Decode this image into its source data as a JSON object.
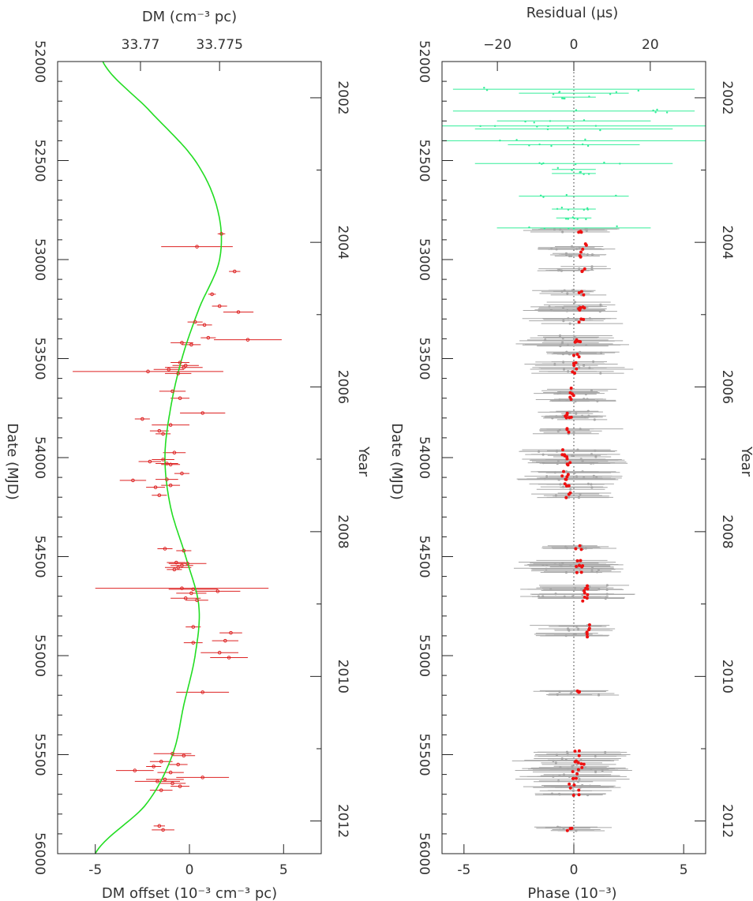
{
  "chart_data": [
    {
      "type": "scatter",
      "orientation": "rotated",
      "xlabel_bottom": "DM offset (10⁻³ cm⁻³ pc)",
      "xlabel_top": "DM (cm⁻³ pc)",
      "ylabel_left": "Date (MJD)",
      "ylabel_right": "Year",
      "xlim": [
        -7,
        7
      ],
      "ylim": [
        52000,
        56000
      ],
      "xticks_bottom": [
        "-5",
        "0",
        "5"
      ],
      "xtick_values_bottom": [
        -5,
        0,
        5
      ],
      "xticks_top": [
        "33.77",
        "33.775"
      ],
      "xtick_values_top": [
        -2.6,
        1.6
      ],
      "yticks_left": [
        "52000",
        "52500",
        "53000",
        "53500",
        "54000",
        "54500",
        "55000",
        "55500",
        "56000"
      ],
      "ytick_values_left": [
        52000,
        52500,
        53000,
        53500,
        54000,
        54500,
        55000,
        55500,
        56000
      ],
      "yticks_right": [
        "2002",
        "2004",
        "2006",
        "2008",
        "2010",
        "2012"
      ],
      "ytick_values_right": [
        52183,
        52913,
        53643,
        54374,
        55105,
        55835
      ],
      "curve_color": "#22dd22",
      "point_color": "#dd2222",
      "curve": {
        "mjd": [
          52000,
          52250,
          52500,
          52750,
          53000,
          53250,
          53500,
          53750,
          54000,
          54250,
          54500,
          54750,
          55000,
          55250,
          55500,
          55750,
          56000
        ],
        "dm": [
          -4.6,
          -2.1,
          0.3,
          1.5,
          1.6,
          0.5,
          -0.4,
          -1.0,
          -1.3,
          -1.0,
          -0.2,
          0.5,
          0.3,
          -0.3,
          -0.9,
          -2.3,
          -5.0
        ]
      },
      "points": [
        {
          "mjd": 52870,
          "dm": 1.7,
          "err": 0.2
        },
        {
          "mjd": 52935,
          "dm": 0.4,
          "err": 1.9
        },
        {
          "mjd": 53060,
          "dm": 2.4,
          "err": 0.3
        },
        {
          "mjd": 53175,
          "dm": 1.2,
          "err": 0.2
        },
        {
          "mjd": 53235,
          "dm": 1.6,
          "err": 0.4
        },
        {
          "mjd": 53265,
          "dm": 2.6,
          "err": 0.8
        },
        {
          "mjd": 53315,
          "dm": 0.3,
          "err": 0.4
        },
        {
          "mjd": 53330,
          "dm": 0.8,
          "err": 0.4
        },
        {
          "mjd": 53395,
          "dm": 1.0,
          "err": 0.4
        },
        {
          "mjd": 53405,
          "dm": 3.1,
          "err": 1.8
        },
        {
          "mjd": 53420,
          "dm": -0.4,
          "err": 0.6
        },
        {
          "mjd": 53430,
          "dm": 0.1,
          "err": 0.5
        },
        {
          "mjd": 53520,
          "dm": -0.5,
          "err": 0.5
        },
        {
          "mjd": 53535,
          "dm": -0.2,
          "err": 0.7
        },
        {
          "mjd": 53545,
          "dm": -0.3,
          "err": 1.0
        },
        {
          "mjd": 53555,
          "dm": -1.1,
          "err": 0.8
        },
        {
          "mjd": 53565,
          "dm": -2.2,
          "err": 4.0
        },
        {
          "mjd": 53575,
          "dm": -0.6,
          "err": 0.7
        },
        {
          "mjd": 53665,
          "dm": -0.9,
          "err": 0.7
        },
        {
          "mjd": 53700,
          "dm": -0.5,
          "err": 0.5
        },
        {
          "mjd": 53775,
          "dm": 0.7,
          "err": 1.2
        },
        {
          "mjd": 53805,
          "dm": -2.5,
          "err": 0.4
        },
        {
          "mjd": 53835,
          "dm": -1.0,
          "err": 1.0
        },
        {
          "mjd": 53865,
          "dm": -1.6,
          "err": 0.5
        },
        {
          "mjd": 53880,
          "dm": -1.4,
          "err": 0.4
        },
        {
          "mjd": 53975,
          "dm": -0.8,
          "err": 0.6
        },
        {
          "mjd": 54010,
          "dm": -1.4,
          "err": 0.6
        },
        {
          "mjd": 54020,
          "dm": -2.1,
          "err": 0.6
        },
        {
          "mjd": 54030,
          "dm": -1.2,
          "err": 0.6
        },
        {
          "mjd": 54035,
          "dm": -1.0,
          "err": 0.5
        },
        {
          "mjd": 54080,
          "dm": -0.4,
          "err": 0.4
        },
        {
          "mjd": 54110,
          "dm": -1.2,
          "err": 0.6
        },
        {
          "mjd": 54115,
          "dm": -3.0,
          "err": 0.7
        },
        {
          "mjd": 54140,
          "dm": -1.0,
          "err": 0.5
        },
        {
          "mjd": 54150,
          "dm": -1.8,
          "err": 0.5
        },
        {
          "mjd": 54190,
          "dm": -1.6,
          "err": 0.4
        },
        {
          "mjd": 54460,
          "dm": -1.3,
          "err": 0.4
        },
        {
          "mjd": 54470,
          "dm": -0.3,
          "err": 0.4
        },
        {
          "mjd": 54530,
          "dm": -0.7,
          "err": 0.5
        },
        {
          "mjd": 54535,
          "dm": -0.1,
          "err": 1.0
        },
        {
          "mjd": 54545,
          "dm": -0.4,
          "err": 0.6
        },
        {
          "mjd": 54555,
          "dm": -0.6,
          "err": 0.7
        },
        {
          "mjd": 54565,
          "dm": -0.8,
          "err": 0.4
        },
        {
          "mjd": 54660,
          "dm": -0.4,
          "err": 4.6
        },
        {
          "mjd": 54665,
          "dm": 0.2,
          "err": 1.3
        },
        {
          "mjd": 54675,
          "dm": 1.5,
          "err": 1.2
        },
        {
          "mjd": 54685,
          "dm": 0.1,
          "err": 0.8
        },
        {
          "mjd": 54710,
          "dm": -0.2,
          "err": 0.8
        },
        {
          "mjd": 54720,
          "dm": 0.4,
          "err": 0.6
        },
        {
          "mjd": 54855,
          "dm": 0.2,
          "err": 0.4
        },
        {
          "mjd": 54885,
          "dm": 2.2,
          "err": 0.6
        },
        {
          "mjd": 54925,
          "dm": 1.9,
          "err": 0.7
        },
        {
          "mjd": 54935,
          "dm": 0.2,
          "err": 0.5
        },
        {
          "mjd": 54985,
          "dm": 1.6,
          "err": 1.0
        },
        {
          "mjd": 55010,
          "dm": 2.1,
          "err": 1.0
        },
        {
          "mjd": 55185,
          "dm": 0.7,
          "err": 1.4
        },
        {
          "mjd": 55495,
          "dm": -0.9,
          "err": 1.0
        },
        {
          "mjd": 55505,
          "dm": -0.3,
          "err": 0.6
        },
        {
          "mjd": 55535,
          "dm": -1.5,
          "err": 0.6
        },
        {
          "mjd": 55550,
          "dm": -0.6,
          "err": 0.5
        },
        {
          "mjd": 55560,
          "dm": -1.9,
          "err": 0.4
        },
        {
          "mjd": 55580,
          "dm": -2.9,
          "err": 1.0
        },
        {
          "mjd": 55590,
          "dm": -1.0,
          "err": 0.7
        },
        {
          "mjd": 55615,
          "dm": 0.7,
          "err": 1.4
        },
        {
          "mjd": 55625,
          "dm": -1.3,
          "err": 1.0
        },
        {
          "mjd": 55635,
          "dm": -1.7,
          "err": 1.2
        },
        {
          "mjd": 55645,
          "dm": -0.9,
          "err": 0.7
        },
        {
          "mjd": 55660,
          "dm": -0.5,
          "err": 0.5
        },
        {
          "mjd": 55680,
          "dm": -1.5,
          "err": 0.6
        },
        {
          "mjd": 55860,
          "dm": -1.6,
          "err": 0.3
        },
        {
          "mjd": 55880,
          "dm": -1.4,
          "err": 0.6
        }
      ]
    },
    {
      "type": "scatter",
      "orientation": "rotated",
      "xlabel_bottom": "Phase (10⁻³)",
      "xlabel_top": "Residual (μs)",
      "ylabel_left": "Date (MJD)",
      "ylabel_right": "Year",
      "xlim": [
        -6,
        6
      ],
      "ylim": [
        52000,
        56000
      ],
      "xticks_bottom": [
        "-5",
        "0",
        "5"
      ],
      "xtick_values_bottom": [
        -5,
        0,
        5
      ],
      "xticks_top": [
        "−20",
        "0",
        "20"
      ],
      "xtick_values_top": [
        -3.48,
        0,
        3.48
      ],
      "yticks_left": [
        "52000",
        "52500",
        "53000",
        "53500",
        "54000",
        "54500",
        "55000",
        "55500",
        "56000"
      ],
      "ytick_values_left": [
        52000,
        52500,
        53000,
        53500,
        54000,
        54500,
        55000,
        55500,
        56000
      ],
      "yticks_right": [
        "2002",
        "2004",
        "2006",
        "2008",
        "2010",
        "2012"
      ],
      "ytick_values_right": [
        52183,
        52913,
        53643,
        54374,
        55105,
        55835
      ],
      "early_color": "#33ee99",
      "grey_color": "#a8a8a8",
      "red_color": "#ee1111",
      "zero_line": "dotted",
      "epochs_early": [
        {
          "mjd": 52140,
          "half_width": 5.5
        },
        {
          "mjd": 52160,
          "half_width": 2.5
        },
        {
          "mjd": 52180,
          "half_width": 1.0
        },
        {
          "mjd": 52250,
          "half_width": 5.5
        },
        {
          "mjd": 52300,
          "half_width": 3.5
        },
        {
          "mjd": 52325,
          "half_width": 6.0
        },
        {
          "mjd": 52340,
          "half_width": 4.5
        },
        {
          "mjd": 52400,
          "half_width": 6.0
        },
        {
          "mjd": 52420,
          "half_width": 3.0
        },
        {
          "mjd": 52515,
          "half_width": 4.5
        },
        {
          "mjd": 52545,
          "half_width": 1.0
        },
        {
          "mjd": 52565,
          "half_width": 1.0
        },
        {
          "mjd": 52680,
          "half_width": 2.5
        },
        {
          "mjd": 52745,
          "half_width": 1.0
        },
        {
          "mjd": 52790,
          "half_width": 0.8
        },
        {
          "mjd": 52840,
          "half_width": 3.5
        }
      ],
      "epochs_main": [
        {
          "mjd": 52860,
          "red": 0.3,
          "half_width": 1.6
        },
        {
          "mjd": 52935,
          "red": 0.5,
          "half_width": 1.4
        },
        {
          "mjd": 52975,
          "red": 0.4,
          "half_width": 1.2
        },
        {
          "mjd": 53050,
          "red": 0.4,
          "half_width": 1.4
        },
        {
          "mjd": 53170,
          "red": 0.3,
          "half_width": 1.3
        },
        {
          "mjd": 53230,
          "red": 0.4,
          "half_width": 1.4
        },
        {
          "mjd": 53260,
          "red": 0.2,
          "half_width": 1.6
        },
        {
          "mjd": 53310,
          "red": 0.3,
          "half_width": 1.8
        },
        {
          "mjd": 53400,
          "red": 0.2,
          "half_width": 1.6
        },
        {
          "mjd": 53425,
          "red": 0.1,
          "half_width": 2.0
        },
        {
          "mjd": 53480,
          "red": 0.1,
          "half_width": 1.8
        },
        {
          "mjd": 53530,
          "red": 0.0,
          "half_width": 1.8
        },
        {
          "mjd": 53560,
          "red": 0.0,
          "half_width": 2.0
        },
        {
          "mjd": 53665,
          "red": -0.2,
          "half_width": 1.4
        },
        {
          "mjd": 53700,
          "red": -0.1,
          "half_width": 1.3
        },
        {
          "mjd": 53775,
          "red": -0.3,
          "half_width": 1.2
        },
        {
          "mjd": 53800,
          "red": -0.2,
          "half_width": 1.4
        },
        {
          "mjd": 53865,
          "red": -0.3,
          "half_width": 1.6
        },
        {
          "mjd": 53975,
          "red": -0.4,
          "half_width": 2.0
        },
        {
          "mjd": 54000,
          "red": -0.4,
          "half_width": 2.0
        },
        {
          "mjd": 54030,
          "red": -0.3,
          "half_width": 1.8
        },
        {
          "mjd": 54080,
          "red": -0.4,
          "half_width": 1.8
        },
        {
          "mjd": 54110,
          "red": -0.3,
          "half_width": 2.0
        },
        {
          "mjd": 54145,
          "red": -0.3,
          "half_width": 1.8
        },
        {
          "mjd": 54190,
          "red": -0.3,
          "half_width": 1.6
        },
        {
          "mjd": 54460,
          "red": 0.2,
          "half_width": 1.4
        },
        {
          "mjd": 54530,
          "red": 0.3,
          "half_width": 2.2
        },
        {
          "mjd": 54545,
          "red": 0.4,
          "half_width": 2.0
        },
        {
          "mjd": 54565,
          "red": 0.2,
          "half_width": 1.8
        },
        {
          "mjd": 54660,
          "red": 0.5,
          "half_width": 1.8
        },
        {
          "mjd": 54680,
          "red": 0.6,
          "half_width": 2.0
        },
        {
          "mjd": 54710,
          "red": 0.5,
          "half_width": 1.8
        },
        {
          "mjd": 54860,
          "red": 0.6,
          "half_width": 1.6
        },
        {
          "mjd": 54895,
          "red": 0.5,
          "half_width": 1.4
        },
        {
          "mjd": 55185,
          "red": 0.3,
          "half_width": 1.4
        },
        {
          "mjd": 55495,
          "red": 0.1,
          "half_width": 2.2
        },
        {
          "mjd": 55535,
          "red": 0.2,
          "half_width": 2.2
        },
        {
          "mjd": 55560,
          "red": 0.4,
          "half_width": 2.0
        },
        {
          "mjd": 55590,
          "red": 0.1,
          "half_width": 2.4
        },
        {
          "mjd": 55625,
          "red": 0.0,
          "half_width": 2.2
        },
        {
          "mjd": 55660,
          "red": -0.1,
          "half_width": 1.8
        },
        {
          "mjd": 55690,
          "red": 0.1,
          "half_width": 1.6
        },
        {
          "mjd": 55870,
          "red": -0.2,
          "half_width": 1.6
        }
      ]
    }
  ]
}
